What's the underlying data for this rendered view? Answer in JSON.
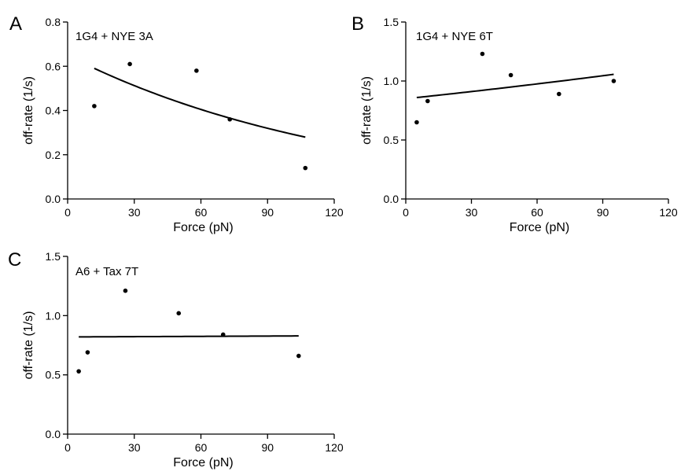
{
  "chart_data": [
    {
      "panel": "A",
      "type": "scatter",
      "annotation": "1G4 + NYE 3A",
      "xlabel": "Force (pN)",
      "ylabel": "off-rate (1/s)",
      "xlim": [
        0,
        120
      ],
      "ylim": [
        0,
        0.8
      ],
      "xticks": [
        "0",
        "30",
        "60",
        "90",
        "120"
      ],
      "yticks": [
        "0.0",
        "0.2",
        "0.4",
        "0.6",
        "0.8"
      ],
      "points": [
        {
          "x": 12,
          "y": 0.42
        },
        {
          "x": 28,
          "y": 0.61
        },
        {
          "x": 58,
          "y": 0.58
        },
        {
          "x": 73,
          "y": 0.36
        },
        {
          "x": 107,
          "y": 0.14
        }
      ],
      "fit": {
        "type": "exponential",
        "x": [
          12,
          107
        ],
        "a": 0.649,
        "b": -0.00787
      }
    },
    {
      "panel": "B",
      "type": "scatter",
      "annotation": "1G4 + NYE 6T",
      "xlabel": "Force (pN)",
      "ylabel": "off-rate (1/s)",
      "xlim": [
        0,
        120
      ],
      "ylim": [
        0,
        1.5
      ],
      "xticks": [
        "0",
        "30",
        "60",
        "90",
        "120"
      ],
      "yticks": [
        "0.0",
        "0.5",
        "1.0",
        "1.5"
      ],
      "points": [
        {
          "x": 5,
          "y": 0.65
        },
        {
          "x": 10,
          "y": 0.83
        },
        {
          "x": 35,
          "y": 1.23
        },
        {
          "x": 48,
          "y": 1.05
        },
        {
          "x": 70,
          "y": 0.89
        },
        {
          "x": 95,
          "y": 1.0
        }
      ],
      "fit": {
        "type": "exponential",
        "x": [
          5,
          95
        ],
        "a": 0.85,
        "b": 0.00229
      }
    },
    {
      "panel": "C",
      "type": "scatter",
      "annotation": "A6 + Tax 7T",
      "xlabel": "Force (pN)",
      "ylabel": "off-rate (1/s)",
      "xlim": [
        0,
        120
      ],
      "ylim": [
        0,
        1.5
      ],
      "xticks": [
        "0",
        "30",
        "60",
        "90",
        "120"
      ],
      "yticks": [
        "0.0",
        "0.5",
        "1.0",
        "1.5"
      ],
      "points": [
        {
          "x": 5,
          "y": 0.53
        },
        {
          "x": 9,
          "y": 0.69
        },
        {
          "x": 26,
          "y": 1.21
        },
        {
          "x": 50,
          "y": 1.02
        },
        {
          "x": 70,
          "y": 0.84
        },
        {
          "x": 104,
          "y": 0.66
        }
      ],
      "fit": {
        "type": "exponential",
        "x": [
          5,
          104
        ],
        "a": 0.82,
        "b": 0.0001
      }
    }
  ]
}
